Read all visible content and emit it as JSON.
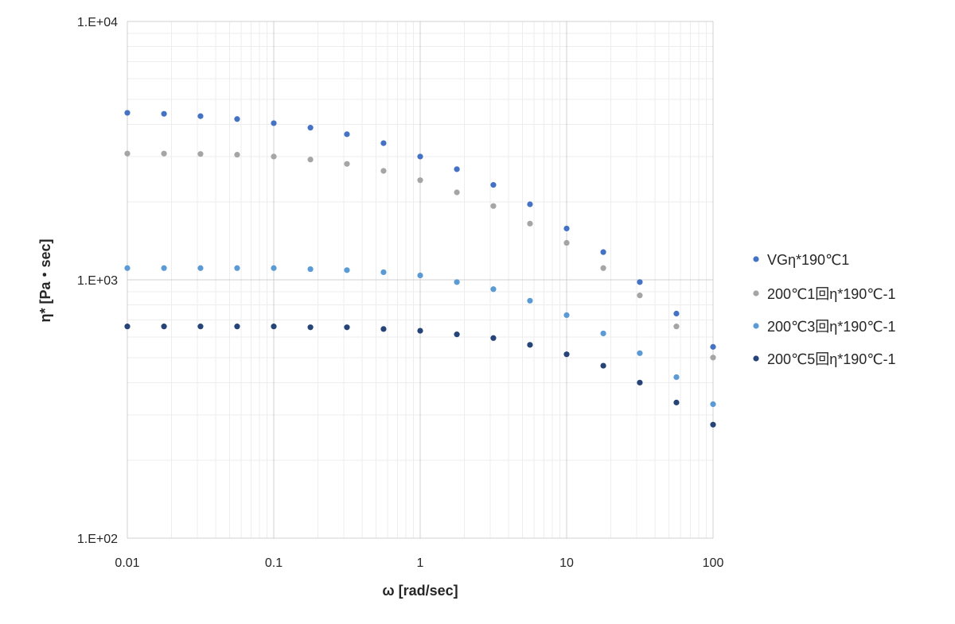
{
  "chart_data": {
    "type": "scatter",
    "title": "",
    "xlabel": "ω [rad/sec]",
    "ylabel": "η* [Pa・sec]",
    "x_scale": "log",
    "y_scale": "log",
    "xlim": [
      0.01,
      100
    ],
    "ylim": [
      100,
      10000
    ],
    "x_tick_labels": [
      "0.01",
      "0.1",
      "1",
      "10",
      "100"
    ],
    "y_tick_labels": [
      "1.E+02",
      "1.E+03",
      "1.E+04"
    ],
    "grid": true,
    "legend_position": "right",
    "x": [
      0.01,
      0.0178,
      0.0316,
      0.0562,
      0.1,
      0.178,
      0.316,
      0.562,
      1,
      1.78,
      3.16,
      5.62,
      10,
      17.8,
      31.6,
      56.2,
      100
    ],
    "series": [
      {
        "name": "VGη*190℃1",
        "color": "#4472C4",
        "values": [
          4430,
          4390,
          4300,
          4190,
          4040,
          3880,
          3660,
          3380,
          3000,
          2680,
          2330,
          1960,
          1580,
          1280,
          980,
          740,
          550
        ]
      },
      {
        "name": "200℃1回η*190℃-1",
        "color": "#A5A5A5",
        "values": [
          3080,
          3080,
          3070,
          3050,
          3000,
          2920,
          2810,
          2640,
          2430,
          2180,
          1930,
          1650,
          1390,
          1110,
          870,
          660,
          500
        ]
      },
      {
        "name": "200℃3回η*190℃-1",
        "color": "#5B9BD5",
        "values": [
          1110,
          1110,
          1110,
          1110,
          1110,
          1100,
          1090,
          1070,
          1040,
          980,
          920,
          830,
          730,
          620,
          520,
          420,
          330
        ]
      },
      {
        "name": "200℃5回η*190℃-1",
        "color": "#264478",
        "values": [
          660,
          660,
          660,
          660,
          660,
          655,
          655,
          645,
          635,
          615,
          595,
          560,
          515,
          465,
          400,
          335,
          275
        ]
      }
    ]
  }
}
